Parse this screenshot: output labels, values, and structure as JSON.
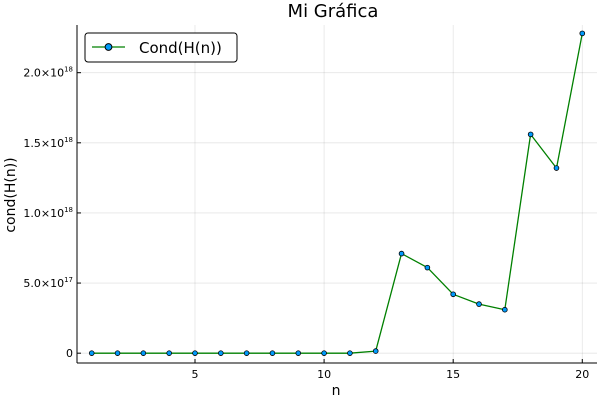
{
  "chart_data": {
    "type": "line",
    "title": "Mi Gráfica",
    "xlabel": "n",
    "ylabel": "cond(H(n))",
    "xlim": [
      0.43,
      20.57
    ],
    "ylim": [
      -7e+16,
      2.34e+18
    ],
    "x_ticks": [
      5,
      10,
      15,
      20
    ],
    "x_tick_labels": [
      "5",
      "10",
      "15",
      "20"
    ],
    "y_ticks": [
      0,
      5e+17,
      1e+18,
      1.5e+18,
      2e+18
    ],
    "y_tick_labels": [
      {
        "mantissa": "0",
        "exp": ""
      },
      {
        "mantissa": "5.0×10",
        "exp": "17"
      },
      {
        "mantissa": "1.0×10",
        "exp": "18"
      },
      {
        "mantissa": "1.5×10",
        "exp": "18"
      },
      {
        "mantissa": "2.0×10",
        "exp": "18"
      }
    ],
    "grid": true,
    "legend_position": "top-left",
    "series": [
      {
        "name": "Cond(H(n))",
        "line_color": "#008000",
        "marker_color": "#009AFA",
        "x": [
          1,
          2,
          3,
          4,
          5,
          6,
          7,
          8,
          9,
          10,
          11,
          12,
          13,
          14,
          15,
          16,
          17,
          18,
          19,
          20
        ],
        "y": [
          0,
          0,
          0,
          0,
          0,
          0,
          0,
          0,
          0,
          0,
          0,
          1.5e+16,
          7.1e+17,
          6.1e+17,
          4.2e+17,
          3.5e+17,
          3.1e+17,
          1.56e+18,
          1.32e+18,
          2.28e+18
        ]
      }
    ]
  }
}
